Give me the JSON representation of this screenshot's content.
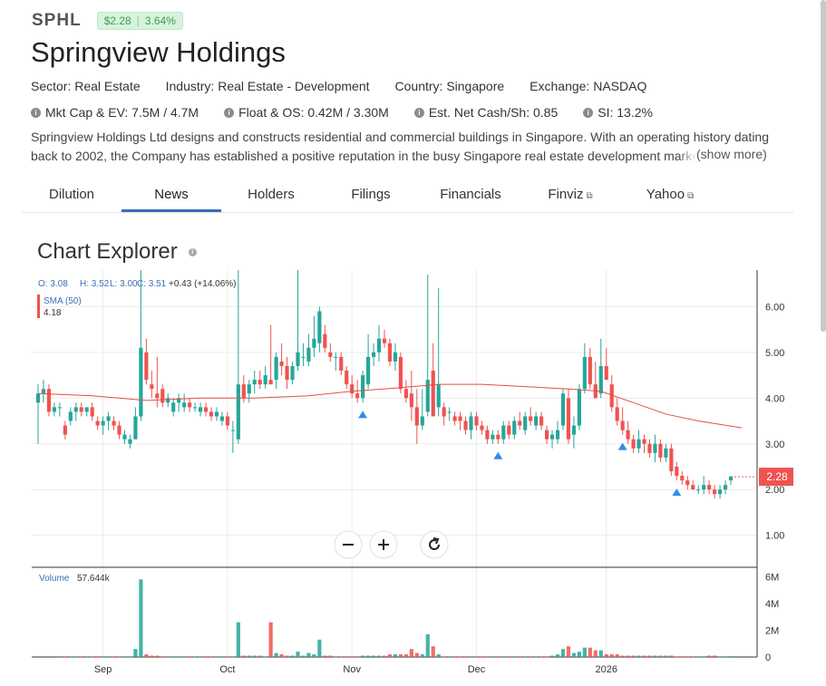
{
  "header": {
    "ticker": "SPHL",
    "price": "$2.28",
    "change": "3.64%",
    "company": "Springview Holdings",
    "sector": "Sector: Real Estate",
    "industry": "Industry: Real Estate - Development",
    "country": "Country: Singapore",
    "exchange": "Exchange: NASDAQ"
  },
  "stats": {
    "mktcap": "Mkt Cap & EV: 7.5M / 4.7M",
    "float": "Float & OS: 0.42M / 3.30M",
    "cash": "Est. Net Cash/Sh: 0.85",
    "si": "SI: 13.2%"
  },
  "description": "Springview Holdings Ltd designs and constructs residential and commercial buildings in Singapore. With an operating history dating back to 2002, the Company has established a positive reputation in the busy Singapore real estate development market.",
  "show_more": "(show more)",
  "tabs": [
    {
      "label": "Dilution",
      "active": false,
      "external": false
    },
    {
      "label": "News",
      "active": true,
      "external": false
    },
    {
      "label": "Holders",
      "active": false,
      "external": false
    },
    {
      "label": "Filings",
      "active": false,
      "external": false
    },
    {
      "label": "Financials",
      "active": false,
      "external": false
    },
    {
      "label": "Finviz",
      "active": false,
      "external": true
    },
    {
      "label": "Yahoo",
      "active": false,
      "external": true
    }
  ],
  "chart_title": "Chart Explorer",
  "colors": {
    "up": "#26a69a",
    "down": "#ef5350",
    "sma": "#e0504a",
    "accent": "#3b6fb6",
    "marker": "#2f8cec"
  },
  "chart_data": {
    "type": "candlestick",
    "ohlc_legend": {
      "o": "O: 3.08",
      "h": "H: 3.52",
      "l": "L: 3.00",
      "c": "C: 3.51",
      "chg": "+0.43 (+14.06%)"
    },
    "sma_label": "SMA (50)",
    "sma_value": "4.18",
    "last_price": "2.28",
    "volume_label": "Volume",
    "volume_value": "57.644k",
    "price_ticks": [
      "1.00",
      "2.00",
      "3.00",
      "4.00",
      "5.00",
      "6.00"
    ],
    "volume_ticks": [
      "0",
      "2M",
      "4M",
      "6M"
    ],
    "x_ticks": [
      {
        "label": "Sep",
        "index": 12
      },
      {
        "label": "Oct",
        "index": 35
      },
      {
        "label": "Nov",
        "index": 58
      },
      {
        "label": "Dec",
        "index": 81
      },
      {
        "label": "2026",
        "index": 105
      }
    ],
    "ylim": [
      0.3,
      6.8
    ],
    "vol_max": 6.3,
    "candles": [
      [
        3.9,
        4.3,
        3.0,
        4.1,
        0
      ],
      [
        4.1,
        4.4,
        3.9,
        4.2,
        0
      ],
      [
        4.2,
        4.3,
        3.6,
        3.7,
        0
      ],
      [
        3.7,
        3.9,
        3.6,
        3.8,
        0
      ],
      [
        3.8,
        3.9,
        3.6,
        3.8,
        0
      ],
      [
        3.4,
        3.5,
        3.1,
        3.2,
        0.05
      ],
      [
        3.5,
        3.8,
        3.4,
        3.7,
        0.05
      ],
      [
        3.7,
        3.9,
        3.5,
        3.8,
        0.05
      ],
      [
        3.8,
        3.9,
        3.6,
        3.7,
        0.05
      ],
      [
        3.7,
        3.8,
        3.6,
        3.8,
        0.05
      ],
      [
        3.8,
        3.9,
        3.5,
        3.6,
        0.05
      ],
      [
        3.5,
        3.6,
        3.3,
        3.4,
        0.05
      ],
      [
        3.4,
        3.6,
        3.2,
        3.5,
        0.05
      ],
      [
        3.5,
        3.7,
        3.3,
        3.6,
        0.05
      ],
      [
        3.5,
        3.6,
        3.3,
        3.4,
        0.05
      ],
      [
        3.4,
        3.5,
        3.1,
        3.2,
        0.05
      ],
      [
        3.1,
        3.3,
        3.0,
        3.2,
        0.05
      ],
      [
        3.0,
        3.2,
        2.9,
        3.1,
        0.05
      ],
      [
        3.1,
        3.8,
        3.1,
        3.6,
        0.6
      ],
      [
        3.6,
        6.9,
        3.5,
        5.1,
        5.8
      ],
      [
        5.0,
        5.3,
        4.3,
        4.4,
        0.2
      ],
      [
        4.3,
        4.6,
        4.0,
        4.2,
        0.1
      ],
      [
        4.1,
        4.9,
        3.8,
        4.0,
        0.1
      ],
      [
        4.2,
        4.3,
        3.8,
        3.9,
        0.05
      ],
      [
        3.9,
        4.1,
        3.8,
        4.0,
        0.05
      ],
      [
        3.7,
        4.0,
        3.6,
        3.9,
        0.05
      ],
      [
        3.9,
        4.1,
        3.7,
        4.0,
        0.05
      ],
      [
        3.8,
        4.1,
        3.7,
        3.9,
        0.05
      ],
      [
        3.9,
        4.0,
        3.7,
        3.8,
        0.05
      ],
      [
        3.8,
        3.9,
        3.7,
        3.8,
        0.05
      ],
      [
        3.7,
        3.9,
        3.6,
        3.8,
        0.05
      ],
      [
        3.8,
        3.9,
        3.6,
        3.7,
        0.05
      ],
      [
        3.7,
        3.8,
        3.5,
        3.6,
        0.05
      ],
      [
        3.6,
        3.8,
        3.5,
        3.7,
        0.05
      ],
      [
        3.5,
        3.7,
        3.4,
        3.6,
        0.05
      ],
      [
        3.6,
        3.7,
        3.3,
        3.4,
        0.05
      ],
      [
        3.3,
        3.5,
        2.8,
        3.3,
        0.05
      ],
      [
        3.1,
        6.8,
        3.0,
        4.3,
        2.6
      ],
      [
        4.3,
        4.5,
        3.9,
        4.0,
        0.1
      ],
      [
        4.1,
        4.4,
        3.9,
        4.3,
        0.1
      ],
      [
        4.3,
        4.6,
        4.1,
        4.4,
        0.1
      ],
      [
        4.4,
        4.6,
        4.2,
        4.3,
        0.1
      ],
      [
        4.3,
        4.7,
        4.2,
        4.5,
        0.05
      ],
      [
        4.4,
        5.6,
        4.3,
        4.3,
        2.6
      ],
      [
        4.4,
        5.0,
        4.2,
        4.9,
        0.3
      ],
      [
        4.8,
        5.2,
        4.5,
        4.7,
        0.2
      ],
      [
        4.7,
        4.9,
        4.2,
        4.4,
        0.1
      ],
      [
        4.4,
        4.8,
        4.3,
        4.7,
        0.1
      ],
      [
        4.7,
        6.8,
        4.6,
        5.0,
        0.4
      ],
      [
        4.9,
        5.2,
        4.7,
        4.9,
        0.1
      ],
      [
        4.8,
        5.4,
        4.7,
        5.1,
        0.3
      ],
      [
        5.1,
        5.8,
        4.9,
        5.3,
        0.2
      ],
      [
        5.2,
        6.0,
        5.0,
        5.9,
        1.3
      ],
      [
        5.4,
        5.6,
        5.0,
        5.1,
        0.1
      ],
      [
        5.0,
        5.2,
        4.8,
        4.9,
        0.1
      ],
      [
        4.9,
        5.0,
        4.6,
        4.9,
        0.05
      ],
      [
        4.9,
        5.0,
        4.5,
        4.6,
        0.05
      ],
      [
        4.6,
        4.7,
        4.2,
        4.3,
        0.05
      ],
      [
        4.3,
        4.5,
        4.0,
        4.1,
        0.05
      ],
      [
        4.1,
        4.4,
        3.9,
        4.0,
        0.05
      ],
      [
        4.0,
        4.6,
        3.9,
        4.5,
        0.1
      ],
      [
        4.3,
        5.4,
        4.2,
        4.9,
        0.1
      ],
      [
        4.9,
        5.2,
        4.7,
        5.0,
        0.1
      ],
      [
        5.0,
        5.6,
        4.8,
        5.3,
        0.1
      ],
      [
        5.3,
        5.5,
        5.1,
        5.2,
        0.1
      ],
      [
        5.2,
        5.3,
        4.7,
        4.8,
        0.2
      ],
      [
        4.8,
        5.2,
        4.6,
        5.0,
        0.2
      ],
      [
        4.9,
        5.0,
        4.1,
        4.2,
        0.2
      ],
      [
        4.2,
        4.4,
        3.9,
        4.0,
        0.2
      ],
      [
        4.1,
        4.6,
        3.5,
        3.8,
        0.6
      ],
      [
        3.8,
        4.2,
        3.0,
        3.4,
        0.3
      ],
      [
        3.4,
        4.2,
        3.3,
        3.6,
        0.2
      ],
      [
        3.7,
        6.7,
        3.6,
        4.4,
        1.7
      ],
      [
        4.6,
        5.2,
        3.6,
        3.6,
        0.8
      ],
      [
        3.8,
        6.4,
        3.6,
        4.3,
        0.2
      ],
      [
        3.8,
        3.9,
        3.4,
        3.6,
        0.05
      ],
      [
        3.7,
        3.8,
        3.5,
        3.7,
        0.05
      ],
      [
        3.6,
        3.7,
        3.4,
        3.5,
        0.05
      ],
      [
        3.6,
        3.7,
        3.3,
        3.5,
        0.05
      ],
      [
        3.5,
        3.6,
        3.2,
        3.3,
        0.05
      ],
      [
        3.3,
        3.7,
        3.1,
        3.6,
        0.05
      ],
      [
        3.6,
        3.7,
        3.3,
        3.4,
        0.05
      ],
      [
        3.4,
        3.5,
        3.2,
        3.3,
        0.05
      ],
      [
        3.3,
        3.4,
        3.0,
        3.1,
        0.05
      ],
      [
        3.1,
        3.3,
        3.0,
        3.2,
        0.05
      ],
      [
        3.2,
        3.3,
        3.0,
        3.1,
        0.05
      ],
      [
        3.1,
        3.5,
        3.0,
        3.4,
        0.05
      ],
      [
        3.4,
        3.5,
        3.1,
        3.2,
        0.05
      ],
      [
        3.2,
        3.6,
        3.1,
        3.5,
        0.05
      ],
      [
        3.5,
        3.7,
        3.3,
        3.4,
        0.05
      ],
      [
        3.3,
        3.7,
        3.2,
        3.6,
        0.05
      ],
      [
        3.6,
        3.8,
        3.4,
        3.5,
        0.05
      ],
      [
        3.4,
        3.7,
        3.3,
        3.6,
        0.05
      ],
      [
        3.6,
        3.7,
        3.3,
        3.4,
        0.05
      ],
      [
        3.3,
        3.4,
        3.0,
        3.1,
        0.05
      ],
      [
        3.1,
        3.3,
        2.9,
        3.2,
        0.1
      ],
      [
        3.1,
        3.5,
        3.0,
        3.3,
        0.2
      ],
      [
        3.4,
        4.2,
        3.3,
        4.1,
        0.6
      ],
      [
        4.0,
        4.2,
        3.0,
        3.1,
        0.8
      ],
      [
        3.2,
        3.6,
        2.9,
        3.4,
        0.3
      ],
      [
        3.4,
        4.3,
        3.3,
        4.2,
        0.4
      ],
      [
        4.2,
        5.2,
        4.1,
        4.9,
        0.7
      ],
      [
        4.9,
        5.1,
        4.2,
        4.3,
        0.7
      ],
      [
        4.3,
        4.8,
        4.0,
        4.0,
        0.5
      ],
      [
        4.1,
        5.3,
        4.0,
        4.7,
        0.5
      ],
      [
        4.7,
        5.1,
        4.4,
        4.4,
        0.2
      ],
      [
        4.3,
        4.5,
        3.7,
        3.8,
        0.2
      ],
      [
        3.8,
        4.0,
        3.4,
        3.5,
        0.2
      ],
      [
        3.5,
        3.8,
        3.2,
        3.3,
        0.1
      ],
      [
        3.3,
        3.5,
        3.0,
        3.1,
        0.1
      ],
      [
        3.1,
        3.2,
        2.8,
        2.9,
        0.1
      ],
      [
        2.9,
        3.3,
        2.8,
        3.1,
        0.1
      ],
      [
        3.1,
        3.2,
        2.8,
        3.0,
        0.1
      ],
      [
        3.0,
        3.1,
        2.7,
        2.8,
        0.1
      ],
      [
        2.8,
        3.2,
        2.6,
        3.0,
        0.1
      ],
      [
        3.0,
        3.1,
        2.6,
        2.7,
        0.1
      ],
      [
        2.7,
        3.0,
        2.6,
        2.9,
        0.1
      ],
      [
        2.9,
        3.0,
        2.3,
        2.4,
        0.1
      ],
      [
        2.5,
        2.6,
        2.2,
        2.3,
        0.05
      ],
      [
        2.3,
        2.4,
        2.1,
        2.2,
        0.05
      ],
      [
        2.2,
        2.3,
        2.0,
        2.1,
        0.05
      ],
      [
        2.1,
        2.2,
        2.0,
        2.0,
        0.05
      ],
      [
        2.0,
        2.1,
        1.9,
        2.0,
        0.05
      ],
      [
        2.0,
        2.3,
        1.9,
        2.1,
        0.05
      ],
      [
        2.1,
        2.2,
        1.9,
        2.0,
        0.1
      ],
      [
        2.0,
        2.1,
        1.8,
        1.9,
        0.1
      ],
      [
        1.9,
        2.1,
        1.8,
        2.0,
        0.05
      ],
      [
        2.0,
        2.2,
        1.9,
        2.1,
        0.05
      ],
      [
        2.2,
        2.3,
        2.1,
        2.28,
        0.06
      ]
    ],
    "sma_series": [
      [
        0,
        4.1
      ],
      [
        10,
        4.05
      ],
      [
        20,
        3.95
      ],
      [
        30,
        4.0
      ],
      [
        40,
        4.0
      ],
      [
        50,
        4.05
      ],
      [
        58,
        4.15
      ],
      [
        66,
        4.22
      ],
      [
        74,
        4.3
      ],
      [
        82,
        4.3
      ],
      [
        90,
        4.25
      ],
      [
        98,
        4.2
      ],
      [
        104,
        4.15
      ],
      [
        110,
        3.9
      ],
      [
        116,
        3.65
      ],
      [
        122,
        3.5
      ],
      [
        130,
        3.35
      ]
    ],
    "markers": [
      60,
      85,
      108,
      118
    ]
  }
}
